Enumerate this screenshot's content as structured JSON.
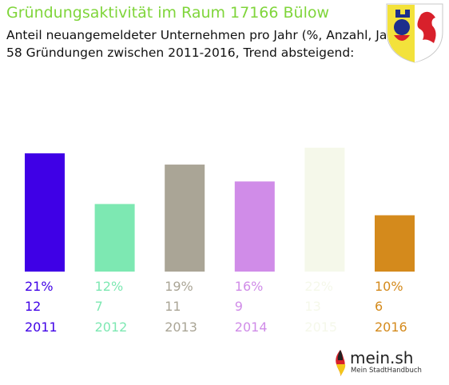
{
  "header": {
    "title": "Gründungsaktivität im Raum 17166 Bülow",
    "subtitle_line1": "Anteil neuangemeldeter Unternehmen pro Jahr (%, Anzahl, Jahr)",
    "subtitle_line2": "58 Gründungen zwischen 2011-2016, Trend absteigend:"
  },
  "logo": {
    "name": "mein.sh",
    "tagline": "Mein StadtHandbuch"
  },
  "colors": {
    "title": "#7fd53a",
    "crest_blue": "#1d2e8c",
    "crest_yellow": "#f3e23b",
    "crest_red": "#d8202b"
  },
  "chart_data": {
    "type": "bar",
    "categories": [
      "2011",
      "2012",
      "2013",
      "2014",
      "2015",
      "2016"
    ],
    "values": [
      21,
      12,
      19,
      16,
      22,
      10
    ],
    "counts": [
      12,
      7,
      11,
      9,
      13,
      6
    ],
    "percent_labels": [
      "21%",
      "12%",
      "19%",
      "16%",
      "22%",
      "10%"
    ],
    "count_labels": [
      "12",
      "7",
      "11",
      "9",
      "13",
      "6"
    ],
    "year_labels": [
      "2011",
      "2012",
      "2013",
      "2014",
      "2015",
      "2016"
    ],
    "colors": [
      "#3f00e6",
      "#7de8b2",
      "#aaa596",
      "#d08ce8",
      "#f5f8ea",
      "#d48a1c"
    ],
    "title": "Gründungsaktivität im Raum 17166 Bülow",
    "xlabel": "",
    "ylabel": "",
    "grid": false,
    "legend": "none"
  }
}
